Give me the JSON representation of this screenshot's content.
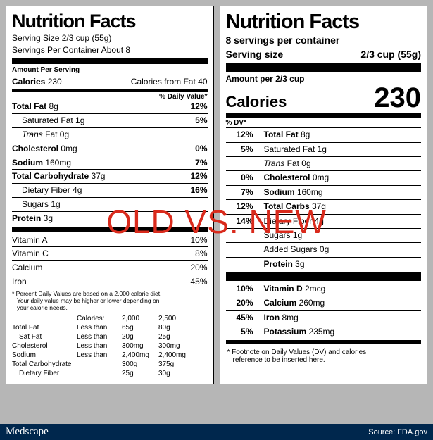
{
  "overlay_text": "OLD VS. NEW",
  "footer": {
    "brand": "Medscape",
    "source": "Source: FDA.gov"
  },
  "colors": {
    "bg": "#b6b6b6",
    "overlay": "#d92a1c",
    "footer_bg": "#00274d"
  },
  "old": {
    "title": "Nutrition Facts",
    "serving_size": "Serving Size 2/3 cup (55g)",
    "servings_per": "Servings Per Container About 8",
    "amount_per": "Amount Per Serving",
    "calories_label": "Calories",
    "calories": "230",
    "cal_from_fat": "Calories from Fat 40",
    "dv_header": "% Daily Value*",
    "rows": [
      {
        "name": "Total Fat",
        "amt": "8g",
        "dv": "12%",
        "bold": true
      },
      {
        "name": "Saturated Fat",
        "amt": "1g",
        "dv": "5%",
        "ind": 1
      },
      {
        "name": "Trans Fat",
        "amt": "0g",
        "dv": "",
        "ind": 1,
        "italic_name": true
      },
      {
        "name": "Cholesterol",
        "amt": "0mg",
        "dv": "0%",
        "bold": true
      },
      {
        "name": "Sodium",
        "amt": "160mg",
        "dv": "7%",
        "bold": true
      },
      {
        "name": "Total Carbohydrate",
        "amt": "37g",
        "dv": "12%",
        "bold": true
      },
      {
        "name": "Dietary Fiber",
        "amt": "4g",
        "dv": "16%",
        "ind": 1
      },
      {
        "name": "Sugars",
        "amt": "1g",
        "dv": "",
        "ind": 1
      },
      {
        "name": "Protein",
        "amt": "3g",
        "dv": "",
        "bold": true
      }
    ],
    "vitamins": [
      {
        "name": "Vitamin A",
        "dv": "10%"
      },
      {
        "name": "Vitamin C",
        "dv": "8%"
      },
      {
        "name": "Calcium",
        "dv": "20%"
      },
      {
        "name": "Iron",
        "dv": "45%"
      }
    ],
    "footnote1": "* Percent Daily Values are based on a 2,000 calorie diet.",
    "footnote2": "Your daily value may be higher or lower depending on",
    "footnote3": "your calorie needs.",
    "guide": {
      "hdr": [
        "",
        "Calories:",
        "2,000",
        "2,500"
      ],
      "rows": [
        [
          "Total Fat",
          "Less than",
          "65g",
          "80g"
        ],
        [
          "Sat Fat",
          "Less than",
          "20g",
          "25g"
        ],
        [
          "Cholesterol",
          "Less than",
          "300mg",
          "300mg"
        ],
        [
          "Sodium",
          "Less than",
          "2,400mg",
          "2,400mg"
        ],
        [
          "Total Carbohydrate",
          "",
          "300g",
          "375g"
        ],
        [
          "Dietary Fiber",
          "",
          "25g",
          "30g"
        ]
      ]
    }
  },
  "new": {
    "title": "Nutrition Facts",
    "servings_per": "8 servings per container",
    "serving_size_label": "Serving size",
    "serving_size": "2/3 cup (55g)",
    "amount_per": "Amount per 2/3 cup",
    "calories_label": "Calories",
    "calories": "230",
    "dv_header": "% DV*",
    "rows": [
      {
        "dv": "12%",
        "name": "Total Fat",
        "amt": "8g",
        "bold": true
      },
      {
        "dv": "5%",
        "name": "Saturated Fat",
        "amt": "1g",
        "ind": 1
      },
      {
        "dv": "",
        "name": "Trans Fat",
        "amt": "0g",
        "ind": 1,
        "italic_name": true
      },
      {
        "dv": "0%",
        "name": "Cholesterol",
        "amt": "0mg",
        "bold": true
      },
      {
        "dv": "7%",
        "name": "Sodium",
        "amt": "160mg",
        "bold": true
      },
      {
        "dv": "12%",
        "name": "Total Carbs",
        "amt": "37g",
        "bold": true
      },
      {
        "dv": "14%",
        "name": "Dietary Fiber",
        "amt": "4g",
        "ind": 1
      },
      {
        "dv": "",
        "name": "Sugars",
        "amt": "1g",
        "ind": 1
      },
      {
        "dv": "",
        "name": "Added Sugars",
        "amt": "0g",
        "ind": 2
      },
      {
        "dv": "",
        "name": "Protein",
        "amt": "3g",
        "bold": true
      }
    ],
    "vitamins": [
      {
        "dv": "10%",
        "name": "Vitamin D",
        "amt": "2mcg"
      },
      {
        "dv": "20%",
        "name": "Calcium",
        "amt": "260mg"
      },
      {
        "dv": "45%",
        "name": "Iron",
        "amt": "8mg"
      },
      {
        "dv": "5%",
        "name": "Potassium",
        "amt": "235mg"
      }
    ],
    "footnote1": "* Footnote on Daily Values (DV) and calories",
    "footnote2": "reference to be inserted here."
  }
}
